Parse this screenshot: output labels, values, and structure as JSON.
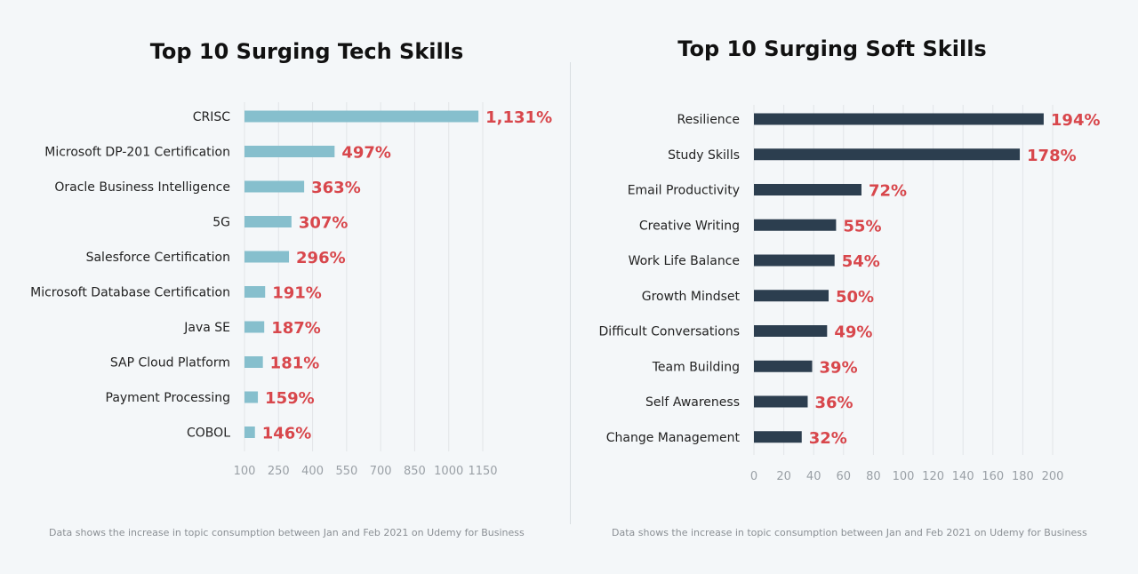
{
  "chart_data": [
    {
      "type": "bar",
      "orientation": "horizontal",
      "title": "Top 10 Surging Tech Skills",
      "categories": [
        "CRISC",
        "Microsoft DP-201 Certification",
        "Oracle Business Intelligence",
        "5G",
        "Salesforce Certification",
        "Microsoft Database Certification",
        "Java SE",
        "SAP Cloud Platform",
        "Payment Processing",
        "COBOL"
      ],
      "values": [
        1131,
        497,
        363,
        307,
        296,
        191,
        187,
        181,
        159,
        146
      ],
      "value_labels": [
        "1,131%",
        "497%",
        "363%",
        "307%",
        "296%",
        "191%",
        "187%",
        "181%",
        "159%",
        "146%"
      ],
      "xlim": [
        100,
        1150
      ],
      "xticks": [
        100,
        250,
        400,
        550,
        700,
        850,
        1000,
        1150
      ],
      "xtick_labels": [
        "100",
        "250",
        "400",
        "550",
        "700",
        "850",
        "1000",
        "1150"
      ],
      "grid": true,
      "bar_color": "#86bfcd",
      "label_color": "#d8474c",
      "note": "Data shows the increase in topic consumption between Jan and Feb 2021 on Udemy for Business"
    },
    {
      "type": "bar",
      "orientation": "horizontal",
      "title": "Top 10 Surging Soft Skills",
      "categories": [
        "Resilience",
        "Study Skills",
        "Email Productivity",
        "Creative Writing",
        "Work Life Balance",
        "Growth Mindset",
        "Difficult Conversations",
        "Team Building",
        "Self Awareness",
        "Change Management"
      ],
      "values": [
        194,
        178,
        72,
        55,
        54,
        50,
        49,
        39,
        36,
        32
      ],
      "value_labels": [
        "194%",
        "178%",
        "72%",
        "55%",
        "54%",
        "50%",
        "49%",
        "39%",
        "36%",
        "32%"
      ],
      "xlim": [
        0,
        200
      ],
      "xticks": [
        0,
        20,
        40,
        60,
        80,
        100,
        120,
        140,
        160,
        180,
        200
      ],
      "xtick_labels": [
        "0",
        "20",
        "40",
        "60",
        "80",
        "100",
        "120",
        "140",
        "160",
        "180",
        "200"
      ],
      "grid": true,
      "bar_color": "#2c3e4f",
      "label_color": "#d8474c",
      "note": "Data shows the increase in topic consumption between Jan and Feb 2021 on Udemy for Business"
    }
  ]
}
